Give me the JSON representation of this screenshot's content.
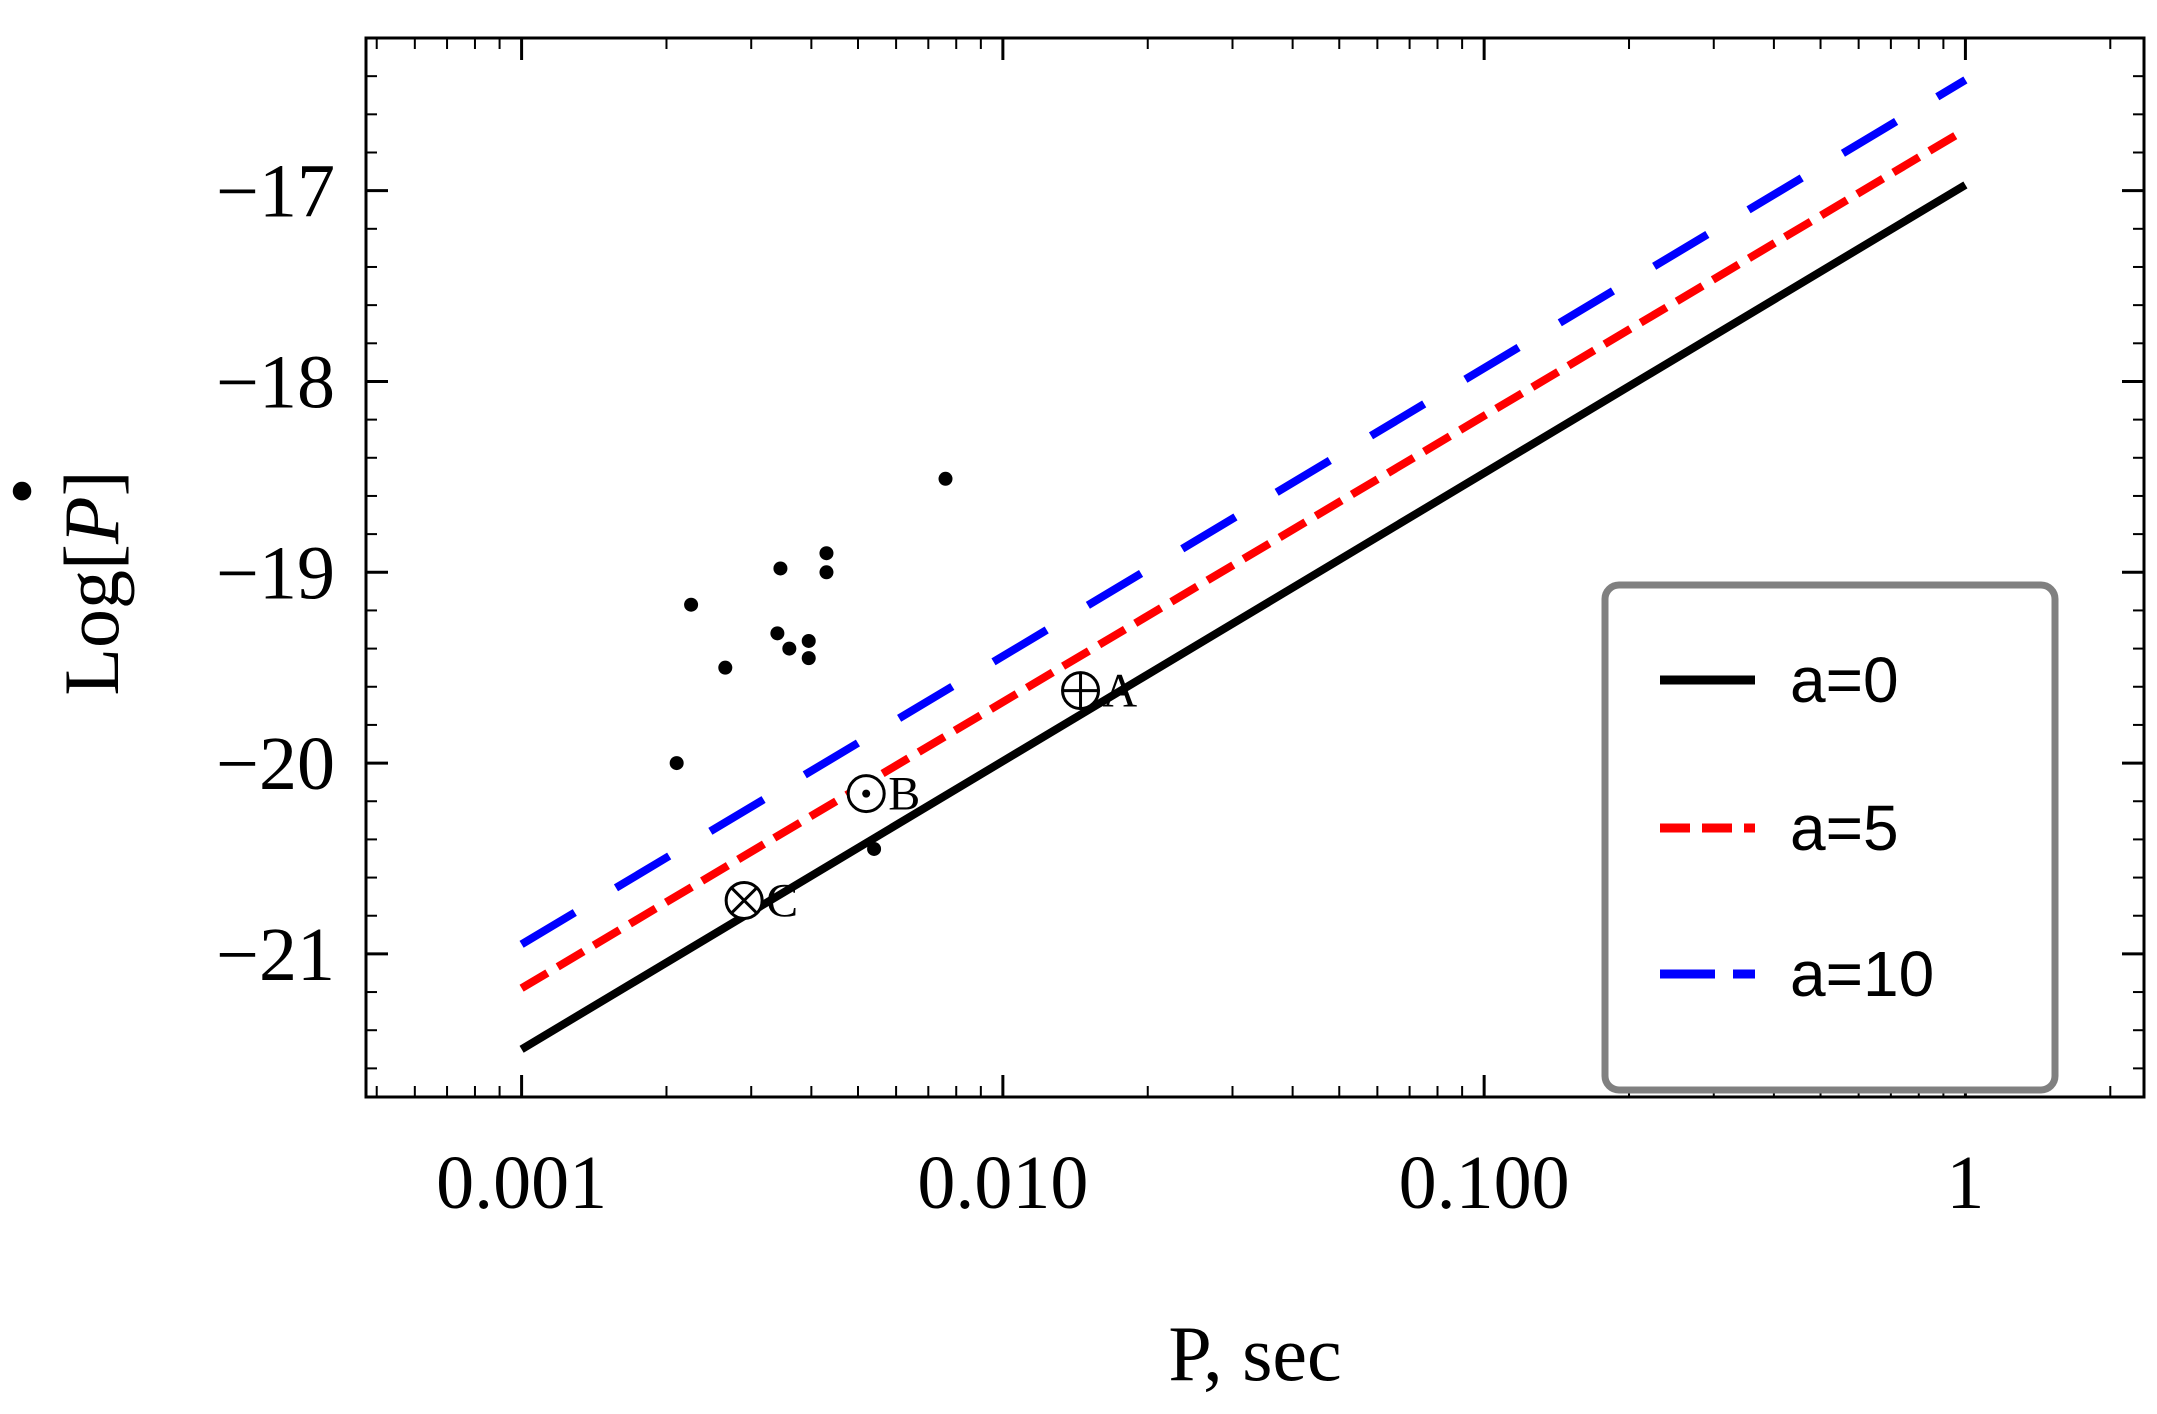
{
  "chart_data": {
    "type": "line",
    "title": "",
    "xlabel": "P, sec",
    "ylabel_prefix": "Log[",
    "ylabel_symbol": "P",
    "ylabel_suffix": "]",
    "ylabel_dot": "•",
    "x_scale": "log",
    "xlim": [
      0.000475,
      2.35
    ],
    "ylim": [
      -21.75,
      -16.2
    ],
    "x_ticks": [
      {
        "value": 0.001,
        "label": "0.001"
      },
      {
        "value": 0.01,
        "label": "0.010"
      },
      {
        "value": 0.1,
        "label": "0.100"
      },
      {
        "value": 1,
        "label": "1"
      }
    ],
    "y_ticks": [
      {
        "value": -17,
        "label": "−17"
      },
      {
        "value": -18,
        "label": "−18"
      },
      {
        "value": -19,
        "label": "−19"
      },
      {
        "value": -20,
        "label": "−20"
      },
      {
        "value": -21,
        "label": "−21"
      }
    ],
    "series": [
      {
        "name": "a=0",
        "style": "solid",
        "color": "#000000",
        "x": [
          0.001,
          1
        ],
        "y": [
          -21.5,
          -16.97
        ]
      },
      {
        "name": "a=5",
        "style": "dashed",
        "color": "#ff0000",
        "x": [
          0.001,
          1
        ],
        "y": [
          -21.18,
          -16.68
        ]
      },
      {
        "name": "a=10",
        "style": "longdash",
        "color": "#0000ff",
        "x": [
          0.001,
          1
        ],
        "y": [
          -20.95,
          -16.42
        ]
      }
    ],
    "scatter": {
      "name": "pulsars",
      "color": "#000000",
      "points": [
        {
          "x": 0.0021,
          "y": -20.0
        },
        {
          "x": 0.00225,
          "y": -19.17
        },
        {
          "x": 0.00265,
          "y": -19.5
        },
        {
          "x": 0.0034,
          "y": -19.32
        },
        {
          "x": 0.00345,
          "y": -18.98
        },
        {
          "x": 0.0036,
          "y": -19.4
        },
        {
          "x": 0.00395,
          "y": -19.45
        },
        {
          "x": 0.00395,
          "y": -19.36
        },
        {
          "x": 0.0043,
          "y": -18.9
        },
        {
          "x": 0.0043,
          "y": -19.0
        },
        {
          "x": 0.0054,
          "y": -20.45
        },
        {
          "x": 0.0076,
          "y": -18.51
        }
      ]
    },
    "annotations": [
      {
        "label": "A",
        "symbol": "oplus",
        "x": 0.0145,
        "y": -19.62
      },
      {
        "label": "B",
        "symbol": "odot",
        "x": 0.0052,
        "y": -20.16
      },
      {
        "label": "C",
        "symbol": "otimes",
        "x": 0.0029,
        "y": -20.72
      }
    ],
    "legend": {
      "placement": "bottom-right",
      "entries": [
        "a=0",
        "a=5",
        "a=10"
      ]
    },
    "grid": false
  }
}
